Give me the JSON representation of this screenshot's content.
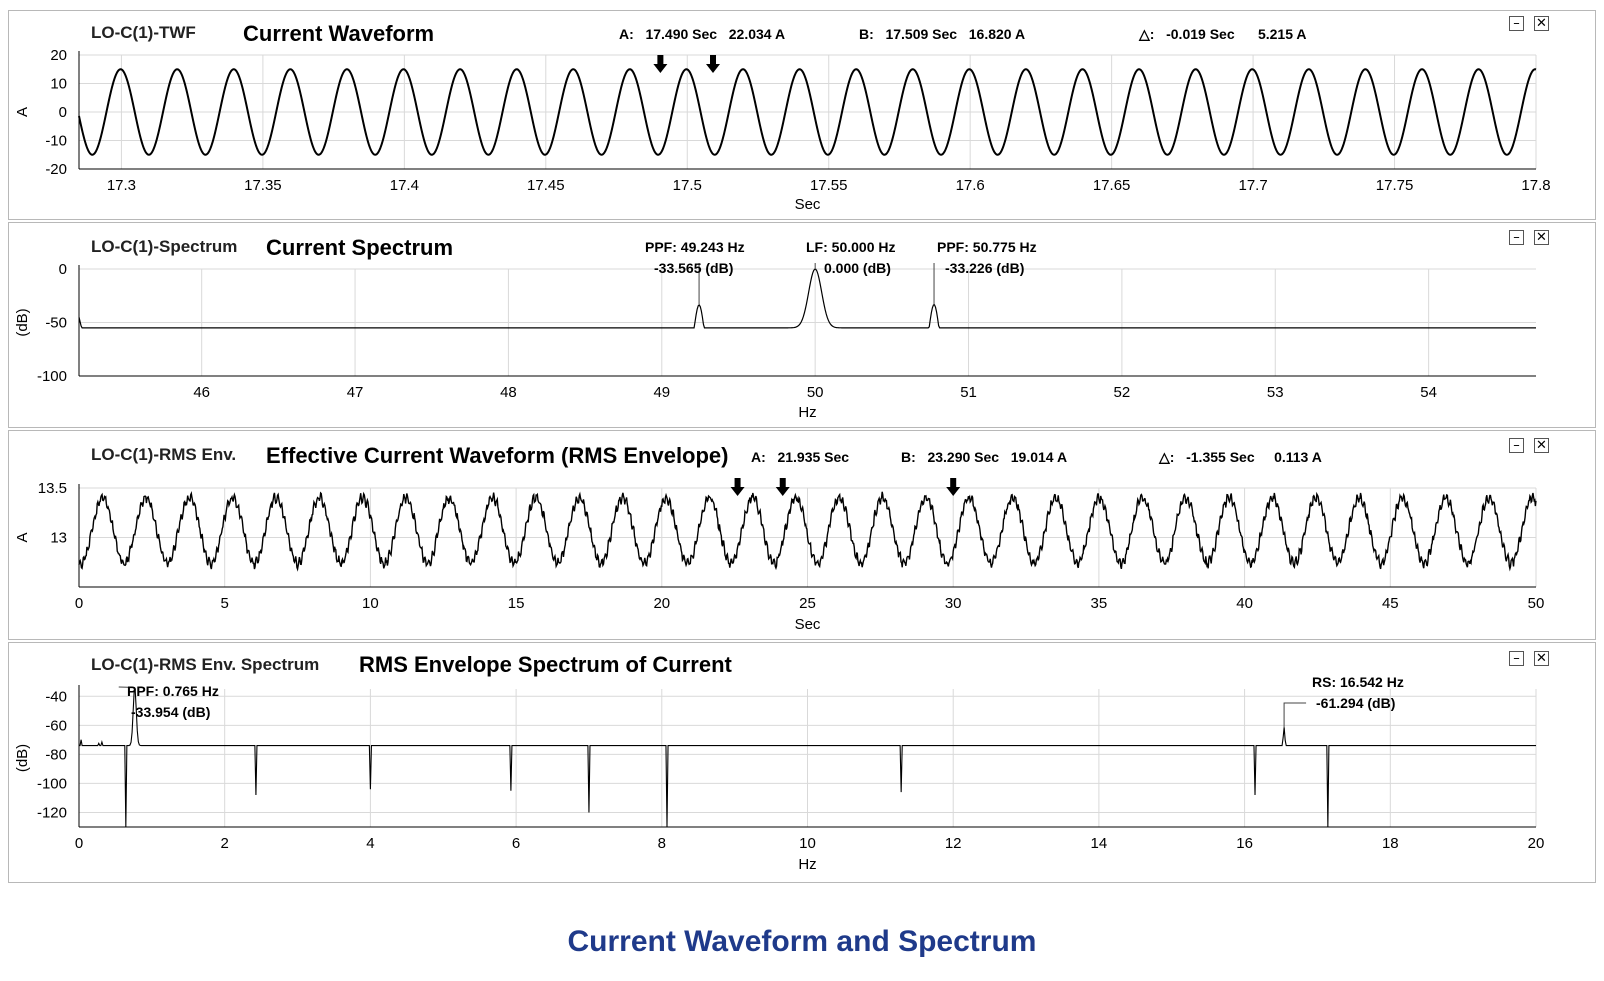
{
  "caption": "Current Waveform and Spectrum",
  "chart_data": [
    {
      "type": "line",
      "tag": "LO-C(1)-TWF",
      "title": "Current Waveform",
      "xlabel": "Sec",
      "ylabel": "A",
      "xlim": [
        17.285,
        17.8
      ],
      "ylim": [
        -20,
        20
      ],
      "xticks": [
        17.3,
        17.35,
        17.4,
        17.45,
        17.5,
        17.55,
        17.6,
        17.65,
        17.7,
        17.75,
        17.8
      ],
      "xtick_labels": [
        "17.3",
        "17.35",
        "17.4",
        "17.45",
        "17.5",
        "17.55",
        "17.6",
        "17.65",
        "17.7",
        "17.75",
        "17.8"
      ],
      "yticks": [
        -20,
        -10,
        0,
        10,
        20
      ],
      "ytick_labels": [
        "-20",
        "-10",
        "0",
        "10",
        "20"
      ],
      "grid": true,
      "signal": {
        "kind": "sine",
        "amplitude": 15,
        "frequency_hz": 50,
        "phase_ref_sec": 17.2897,
        "noise": 0
      },
      "readouts": {
        "a": {
          "label": "A:",
          "time": "17.490 Sec",
          "value": "22.034 A"
        },
        "b": {
          "label": "B:",
          "time": "17.509 Sec",
          "value": "16.820 A"
        },
        "delta": {
          "label": "△:",
          "time": "-0.019 Sec",
          "value": "5.215 A"
        }
      },
      "cursors": [
        17.4905,
        17.5091
      ],
      "window_buttons": {
        "minimize": "–",
        "close": "✕"
      }
    },
    {
      "type": "line",
      "tag": "LO-C(1)-Spectrum",
      "title": "Current Spectrum",
      "xlabel": "Hz",
      "ylabel": "(dB)",
      "xlim": [
        45.2,
        54.7
      ],
      "ylim": [
        -100,
        0
      ],
      "xticks": [
        46,
        47,
        48,
        49,
        50,
        51,
        52,
        53,
        54
      ],
      "xtick_labels": [
        "46",
        "47",
        "48",
        "49",
        "50",
        "51",
        "52",
        "53",
        "54"
      ],
      "yticks": [
        -100,
        -50,
        0
      ],
      "ytick_labels": [
        "-100",
        "-50",
        "0"
      ],
      "grid": true,
      "peaks": [
        {
          "x": 49.243,
          "y": -33.565,
          "label": "PPF: 49.243 Hz",
          "value": "-33.565 (dB)"
        },
        {
          "x": 50.0,
          "y": 0.0,
          "label": "LF: 50.000 Hz",
          "value": "0.000 (dB)"
        },
        {
          "x": 50.775,
          "y": -33.226,
          "label": "PPF: 50.775 Hz",
          "value": "-33.226 (dB)"
        }
      ],
      "noise_floor_db": -80,
      "window_buttons": {
        "minimize": "–",
        "close": "✕"
      }
    },
    {
      "type": "line",
      "tag": "LO-C(1)-RMS Env.",
      "title": "Effective Current Waveform (RMS Envelope)",
      "xlabel": "Sec",
      "ylabel": "A",
      "xlim": [
        0,
        50
      ],
      "ylim": [
        12.5,
        13.5
      ],
      "xticks": [
        0,
        5,
        10,
        15,
        20,
        25,
        30,
        35,
        40,
        45,
        50
      ],
      "xtick_labels": [
        "0",
        "5",
        "10",
        "15",
        "20",
        "25",
        "30",
        "35",
        "40",
        "45",
        "50"
      ],
      "yticks": [
        13,
        13.5
      ],
      "ytick_labels": [
        "13",
        "13.5"
      ],
      "grid": true,
      "signal": {
        "kind": "sine",
        "center": 13.07,
        "amplitude": 0.33,
        "frequency_hz": 0.6725,
        "phase_ref_sec": 0.81,
        "noise": 0.035
      },
      "readouts": {
        "a": {
          "label": "A:",
          "time": "21.935 Sec",
          "value": ""
        },
        "b": {
          "label": "B:",
          "time": "23.290 Sec",
          "value": "19.014 A"
        },
        "delta": {
          "label": "△:",
          "time": "-1.355 Sec",
          "value": "0.113 A"
        }
      },
      "cursors": [
        22.6,
        24.15,
        30.0
      ],
      "window_buttons": {
        "minimize": "–",
        "close": "✕"
      }
    },
    {
      "type": "line",
      "tag": "LO-C(1)-RMS Env. Spectrum",
      "title": "RMS Envelope Spectrum of Current",
      "xlabel": "Hz",
      "ylabel": "(dB)",
      "xlim": [
        0,
        20
      ],
      "ylim": [
        -130,
        -35
      ],
      "xticks": [
        0,
        2,
        4,
        6,
        8,
        10,
        12,
        14,
        16,
        18,
        20
      ],
      "xtick_labels": [
        "0",
        "2",
        "4",
        "6",
        "8",
        "10",
        "12",
        "14",
        "16",
        "18",
        "20"
      ],
      "yticks": [
        -120,
        -100,
        -80,
        -60,
        -40
      ],
      "ytick_labels": [
        "-120",
        "-100",
        "-80",
        "-60",
        "-40"
      ],
      "grid": true,
      "peaks": [
        {
          "x": 0.765,
          "y": -33.954,
          "label": "PPF: 0.765 Hz",
          "value": "-33.954 (dB)"
        },
        {
          "x": 16.542,
          "y": -61.294,
          "label": "RS: 16.542 Hz",
          "value": "-61.294 (dB)"
        }
      ],
      "noise_floor_db": -92,
      "window_buttons": {
        "minimize": "–",
        "close": "✕"
      }
    }
  ]
}
